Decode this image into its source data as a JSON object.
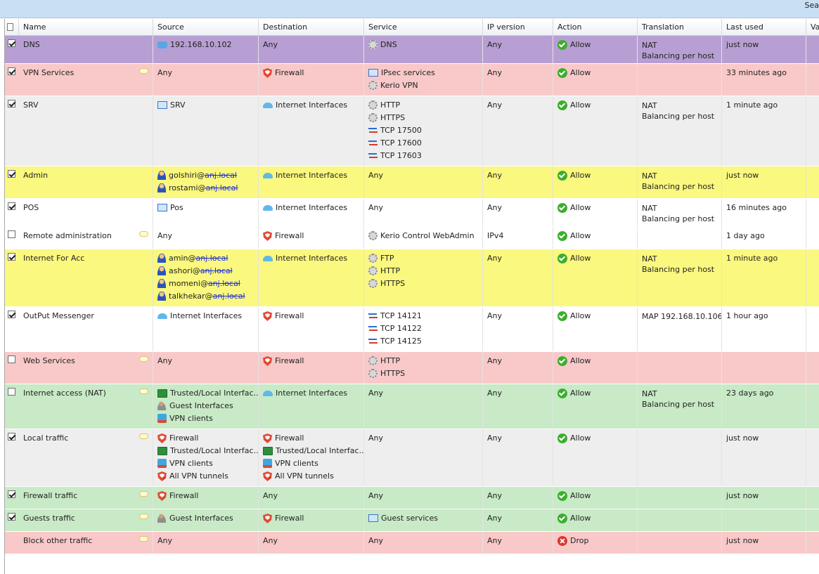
{
  "topbar": {
    "search_label": "Sea"
  },
  "columns": {
    "name": "Name",
    "source": "Source",
    "destination": "Destination",
    "service": "Service",
    "ip_version": "IP version",
    "action": "Action",
    "translation": "Translation",
    "last_used": "Last used",
    "extra": "Va"
  },
  "rules": [
    {
      "name": "DNS",
      "checked": true,
      "comment": false,
      "color": "#b79fd3",
      "source": [
        {
          "icon": "host-icon",
          "text": "192.168.10.102"
        }
      ],
      "destination": [
        {
          "icon": "",
          "text": "Any"
        }
      ],
      "service": [
        {
          "icon": "gear-icon",
          "text": "DNS"
        }
      ],
      "ip": "Any",
      "action": "Allow",
      "translation": [
        "NAT",
        "Balancing per host"
      ],
      "last_used": "just now"
    },
    {
      "name": "VPN Services",
      "checked": true,
      "comment": true,
      "color": "#f9c9c9",
      "source": [
        {
          "icon": "",
          "text": "Any"
        }
      ],
      "destination": [
        {
          "icon": "firewall-icon",
          "text": "Firewall"
        }
      ],
      "service": [
        {
          "icon": "screen-icon",
          "text": "IPsec services"
        },
        {
          "icon": "gear-icon",
          "text": "Kerio VPN"
        }
      ],
      "ip": "Any",
      "action": "Allow",
      "translation": [],
      "last_used": "33 minutes ago"
    },
    {
      "name": "SRV",
      "checked": true,
      "comment": false,
      "color": "#eeeeee",
      "source": [
        {
          "icon": "screen-icon",
          "text": "SRV"
        }
      ],
      "destination": [
        {
          "icon": "cloud-icon",
          "text": "Internet Interfaces"
        }
      ],
      "service": [
        {
          "icon": "gear-icon",
          "text": "HTTP"
        },
        {
          "icon": "gear-icon",
          "text": "HTTPS"
        },
        {
          "icon": "arrows-icon",
          "text": "TCP 17500"
        },
        {
          "icon": "arrows-icon",
          "text": "TCP 17600"
        },
        {
          "icon": "arrows-icon",
          "text": "TCP 17603"
        }
      ],
      "ip": "Any",
      "action": "Allow",
      "translation": [
        "NAT",
        "Balancing per host"
      ],
      "last_used": "1 minute ago"
    },
    {
      "name": "Admin",
      "checked": true,
      "comment": false,
      "color": "#faf87e",
      "source": [
        {
          "icon": "user-icon",
          "text": "golshiri@",
          "scribble": "anj.local"
        },
        {
          "icon": "user-icon",
          "text": "rostami@",
          "scribble": "anj.local"
        }
      ],
      "destination": [
        {
          "icon": "cloud-icon",
          "text": "Internet Interfaces"
        }
      ],
      "service": [
        {
          "icon": "",
          "text": "Any"
        }
      ],
      "ip": "Any",
      "action": "Allow",
      "translation": [
        "NAT",
        "Balancing per host"
      ],
      "last_used": "just now"
    },
    {
      "name": "POS",
      "checked": true,
      "comment": false,
      "color": "#ffffff",
      "source": [
        {
          "icon": "screen-icon",
          "text": "Pos"
        }
      ],
      "destination": [
        {
          "icon": "cloud-icon",
          "text": "Internet Interfaces"
        }
      ],
      "service": [
        {
          "icon": "",
          "text": "Any"
        }
      ],
      "ip": "Any",
      "action": "Allow",
      "translation": [
        "NAT",
        "Balancing per host"
      ],
      "last_used": "16 minutes ago"
    },
    {
      "name": "Remote administration",
      "checked": false,
      "comment": true,
      "color": "#ffffff",
      "source": [
        {
          "icon": "",
          "text": "Any"
        }
      ],
      "destination": [
        {
          "icon": "firewall-icon",
          "text": "Firewall"
        }
      ],
      "service": [
        {
          "icon": "gear-icon",
          "text": "Kerio Control WebAdmin"
        }
      ],
      "ip": "IPv4",
      "action": "Allow",
      "translation": [],
      "last_used": "1 day ago"
    },
    {
      "name": "Internet For Acc",
      "checked": true,
      "comment": false,
      "color": "#faf87e",
      "source": [
        {
          "icon": "user-icon",
          "text": "amin@",
          "scribble": "anj.local"
        },
        {
          "icon": "user-icon",
          "text": "ashori@",
          "scribble": "anj.local"
        },
        {
          "icon": "user-icon",
          "text": "momeni@",
          "scribble": "anj.local"
        },
        {
          "icon": "user-icon",
          "text": "talkhekar@",
          "scribble": "anj.local"
        }
      ],
      "destination": [
        {
          "icon": "cloud-icon",
          "text": "Internet Interfaces"
        }
      ],
      "service": [
        {
          "icon": "gear-icon",
          "text": "FTP"
        },
        {
          "icon": "gear-icon",
          "text": "HTTP"
        },
        {
          "icon": "gear-icon",
          "text": "HTTPS"
        }
      ],
      "ip": "Any",
      "action": "Allow",
      "translation": [
        "NAT",
        "Balancing per host"
      ],
      "last_used": "1 minute ago"
    },
    {
      "name": "OutPut Messenger",
      "checked": true,
      "comment": false,
      "color": "#ffffff",
      "source": [
        {
          "icon": "cloud-icon",
          "text": "Internet Interfaces"
        }
      ],
      "destination": [
        {
          "icon": "firewall-icon",
          "text": "Firewall"
        }
      ],
      "service": [
        {
          "icon": "arrows-icon",
          "text": "TCP 14121"
        },
        {
          "icon": "arrows-icon",
          "text": "TCP 14122"
        },
        {
          "icon": "arrows-icon",
          "text": "TCP 14125"
        }
      ],
      "ip": "Any",
      "action": "Allow",
      "translation": [
        "MAP 192.168.10.106"
      ],
      "last_used": "1 hour ago"
    },
    {
      "name": "Web Services",
      "checked": false,
      "comment": true,
      "color": "#f9c9c9",
      "source": [
        {
          "icon": "",
          "text": "Any"
        }
      ],
      "destination": [
        {
          "icon": "firewall-icon",
          "text": "Firewall"
        }
      ],
      "service": [
        {
          "icon": "gear-icon",
          "text": "HTTP"
        },
        {
          "icon": "gear-icon",
          "text": "HTTPS"
        }
      ],
      "ip": "Any",
      "action": "Allow",
      "translation": [],
      "last_used": ""
    },
    {
      "name": "Internet access (NAT)",
      "checked": false,
      "comment": true,
      "color": "#c8eac6",
      "source": [
        {
          "icon": "pc-icon",
          "text": "Trusted/Local Interfac..."
        },
        {
          "icon": "users-icon",
          "text": "Guest Interfaces"
        },
        {
          "icon": "vpn-icon",
          "text": "VPN clients"
        }
      ],
      "destination": [
        {
          "icon": "cloud-icon",
          "text": "Internet Interfaces"
        }
      ],
      "service": [
        {
          "icon": "",
          "text": "Any"
        }
      ],
      "ip": "Any",
      "action": "Allow",
      "translation": [
        "NAT",
        "Balancing per host"
      ],
      "last_used": "23 days ago"
    },
    {
      "name": "Local traffic",
      "checked": true,
      "comment": true,
      "color": "#eeeeee",
      "source": [
        {
          "icon": "firewall-icon",
          "text": "Firewall"
        },
        {
          "icon": "pc-icon",
          "text": "Trusted/Local Interfac..."
        },
        {
          "icon": "vpn-icon",
          "text": "VPN clients"
        },
        {
          "icon": "shield-red-icon",
          "text": "All VPN tunnels"
        }
      ],
      "destination": [
        {
          "icon": "firewall-icon",
          "text": "Firewall"
        },
        {
          "icon": "pc-icon",
          "text": "Trusted/Local Interfac..."
        },
        {
          "icon": "vpn-icon",
          "text": "VPN clients"
        },
        {
          "icon": "shield-red-icon",
          "text": "All VPN tunnels"
        }
      ],
      "service": [
        {
          "icon": "",
          "text": "Any"
        }
      ],
      "ip": "Any",
      "action": "Allow",
      "translation": [],
      "last_used": "just now"
    },
    {
      "name": "Firewall traffic",
      "checked": true,
      "comment": true,
      "color": "#c8eac6",
      "source": [
        {
          "icon": "firewall-icon",
          "text": "Firewall"
        }
      ],
      "destination": [
        {
          "icon": "",
          "text": "Any"
        }
      ],
      "service": [
        {
          "icon": "",
          "text": "Any"
        }
      ],
      "ip": "Any",
      "action": "Allow",
      "translation": [],
      "last_used": "just now"
    },
    {
      "name": "Guests traffic",
      "checked": true,
      "comment": true,
      "color": "#c8eac6",
      "source": [
        {
          "icon": "users-icon",
          "text": "Guest Interfaces"
        }
      ],
      "destination": [
        {
          "icon": "firewall-icon",
          "text": "Firewall"
        }
      ],
      "service": [
        {
          "icon": "screen-icon",
          "text": "Guest services"
        }
      ],
      "ip": "Any",
      "action": "Allow",
      "translation": [],
      "last_used": ""
    },
    {
      "name": "Block other traffic",
      "checked": null,
      "comment": true,
      "color": "#f9c9c9",
      "source": [
        {
          "icon": "",
          "text": "Any"
        }
      ],
      "destination": [
        {
          "icon": "",
          "text": "Any"
        }
      ],
      "service": [
        {
          "icon": "",
          "text": "Any"
        }
      ],
      "ip": "Any",
      "action": "Drop",
      "translation": [],
      "last_used": "just now"
    }
  ]
}
